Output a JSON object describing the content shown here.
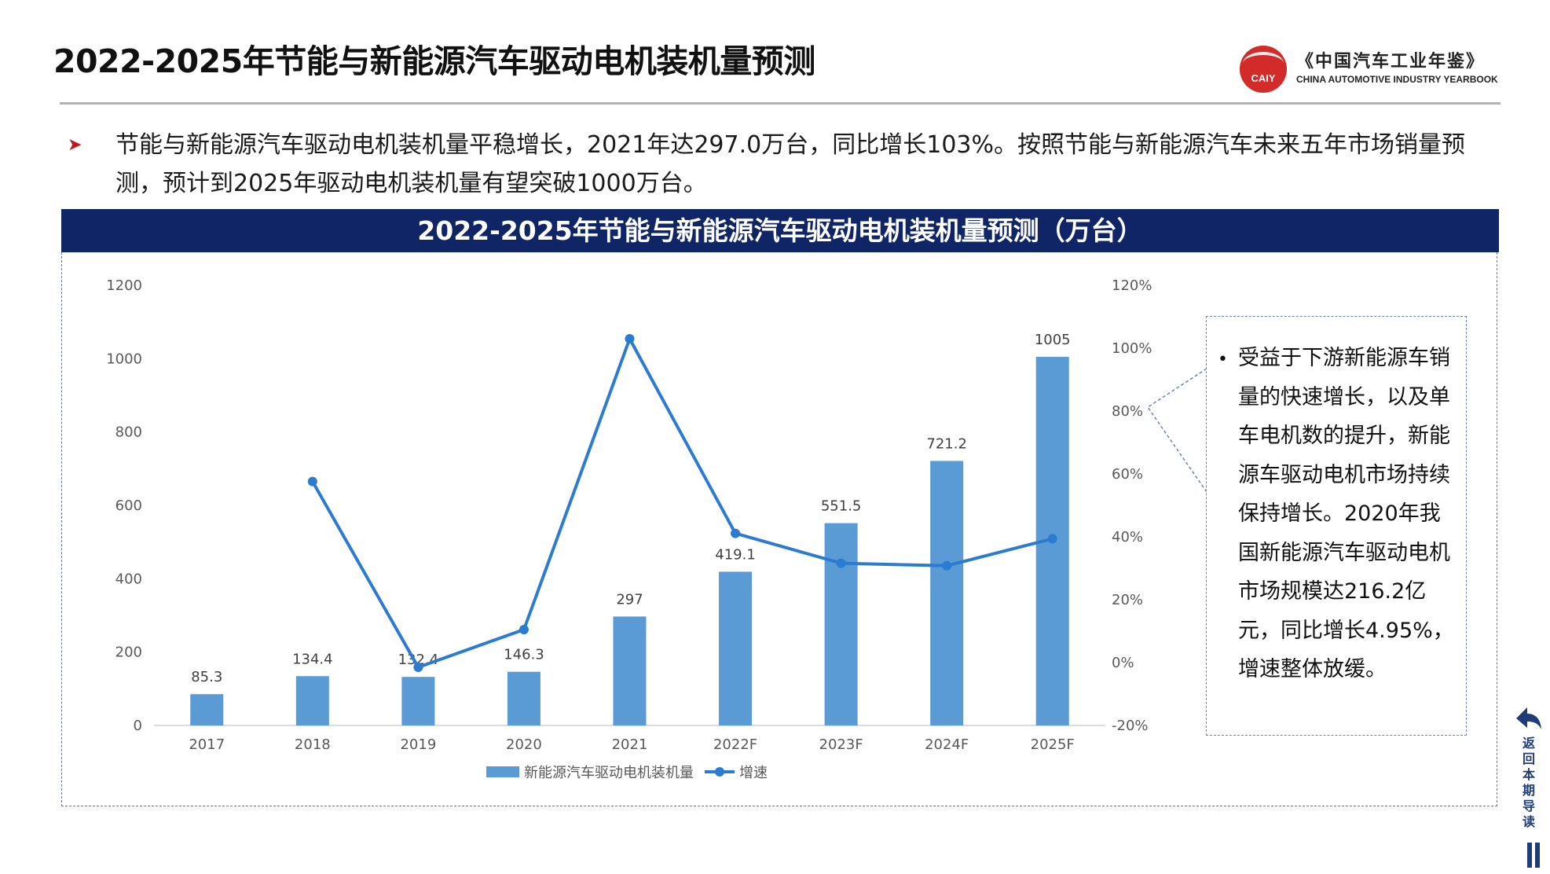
{
  "header": {
    "title": "2022-2025年节能与新能源汽车驱动电机装机量预测",
    "logo_mark": "CAIY",
    "logo_cn": "《中国汽车工业年鉴》",
    "logo_en": "CHINA AUTOMOTIVE INDUSTRY YEARBOOK"
  },
  "bullet": {
    "text": "节能与新能源汽车驱动电机装机量平稳增长，2021年达297.0万台，同比增长103%。按照节能与新能源汽车未来五年市场销量预测，预计到2025年驱动电机装机量有望突破1000万台。"
  },
  "callout": {
    "text": "受益于下游新能源车销量的快速增长，以及单车电机数的提升，新能源车驱动电机市场持续保持增长。2020年我国新能源汽车驱动电机市场规模达216.2亿元，同比增长4.95%，增速整体放缓。"
  },
  "nav": {
    "back_label": "返回本期导读"
  },
  "colors": {
    "bar": "#5b9bd5",
    "line": "#2b7bd0",
    "header_bg": "#102566",
    "accent_red": "#c0161c"
  },
  "chart_data": {
    "type": "bar",
    "title": "2022-2025年节能与新能源汽车驱动电机装机量预测（万台）",
    "categories": [
      "2017",
      "2018",
      "2019",
      "2020",
      "2021",
      "2022F",
      "2023F",
      "2024F",
      "2025F"
    ],
    "series": [
      {
        "name": "新能源汽车驱动电机装机量",
        "type": "bar",
        "axis": "left",
        "values": [
          85.3,
          134.4,
          132.4,
          146.3,
          297,
          419.1,
          551.5,
          721.2,
          1005
        ],
        "labels": [
          "85.3",
          "134.4",
          "132.4",
          "146.3",
          "297",
          "419.1",
          "551.5",
          "721.2",
          "1005"
        ]
      },
      {
        "name": "增速",
        "type": "line",
        "axis": "right",
        "values": [
          null,
          57.6,
          -1.5,
          10.5,
          103,
          41.1,
          31.6,
          30.8,
          39.4
        ]
      }
    ],
    "y_left": {
      "min": 0,
      "max": 1200,
      "ticks": [
        0,
        200,
        400,
        600,
        800,
        1000,
        1200
      ]
    },
    "y_right": {
      "min": -20,
      "max": 120,
      "ticks": [
        -20,
        0,
        20,
        40,
        60,
        80,
        100,
        120
      ],
      "tick_labels": [
        "-20%",
        "0%",
        "20%",
        "40%",
        "60%",
        "80%",
        "100%",
        "120%"
      ]
    },
    "legend_position": "bottom",
    "grid": false
  }
}
